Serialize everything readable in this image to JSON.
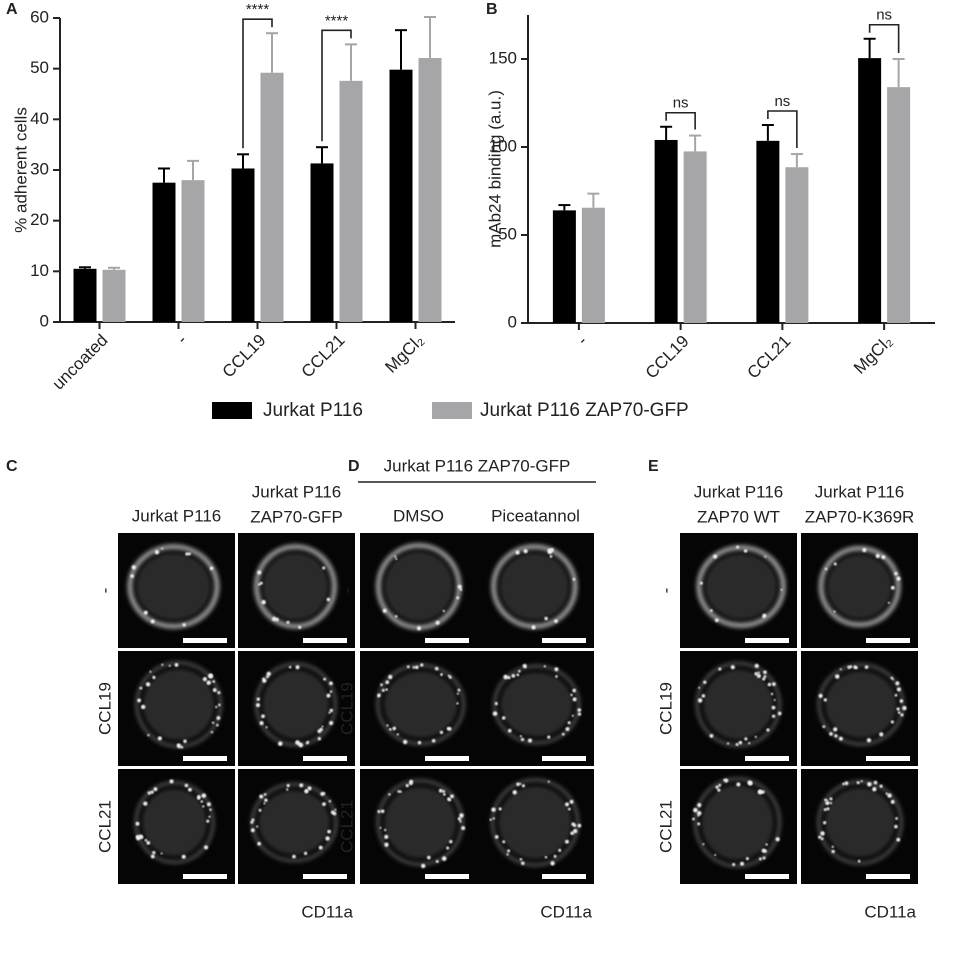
{
  "chart_data": [
    {
      "type": "bar",
      "label": "A",
      "ylabel": "% adherent cells",
      "categories": [
        "uncoated",
        "-",
        "CCL19",
        "CCL21",
        "MgCl₂"
      ],
      "series": [
        {
          "name": "Jurkat P116",
          "color": "#000000",
          "values": [
            10.5,
            27.5,
            30.3,
            31.3,
            49.8
          ],
          "errors": [
            0.3,
            2.8,
            2.8,
            3.2,
            7.8
          ]
        },
        {
          "name": "Jurkat P116 ZAP70-GFP",
          "color": "#a6a6a8",
          "values": [
            10.3,
            28.0,
            49.2,
            47.6,
            52.1
          ],
          "errors": [
            0.4,
            3.8,
            7.8,
            7.2,
            8.1
          ]
        }
      ],
      "annotations": [
        null,
        null,
        "****",
        "****",
        null
      ],
      "ylim": [
        0,
        60
      ],
      "yticks": [
        0,
        10,
        20,
        30,
        40,
        50,
        60
      ],
      "legend": "bottom"
    },
    {
      "type": "bar",
      "label": "B",
      "ylabel": "mAb24 binding (a.u.)",
      "categories": [
        "-",
        "CCL19",
        "CCL21",
        "MgCl₂"
      ],
      "series": [
        {
          "color": "#000000",
          "values": [
            64,
            104,
            103.5,
            150.5
          ],
          "errors": [
            3,
            7.5,
            9,
            11
          ]
        },
        {
          "color": "#a6a6a8",
          "values": [
            65.5,
            97.5,
            88.5,
            134
          ],
          "errors": [
            8,
            9,
            7.5,
            16
          ]
        }
      ],
      "annotations": [
        null,
        "ns",
        "ns",
        "ns"
      ],
      "ylim": [
        0,
        175
      ],
      "yticks": [
        0,
        50,
        100,
        150
      ]
    }
  ],
  "image_panels": [
    {
      "label": "C",
      "columns": [
        [
          "Jurkat P116"
        ],
        [
          "Jurkat P116",
          "ZAP70-GFP"
        ]
      ],
      "rows": [
        "-",
        "CCL19",
        "CCL21"
      ],
      "channel": "CD11a"
    },
    {
      "label": "D",
      "group": "Jurkat P116 ZAP70-GFP",
      "columns": [
        [
          "DMSO"
        ],
        [
          "Piceatannol"
        ]
      ],
      "rows": [
        "-",
        "CCL19",
        "CCL21"
      ],
      "channel": "CD11a"
    },
    {
      "label": "E",
      "columns": [
        [
          "Jurkat P116",
          "ZAP70 WT"
        ],
        [
          "Jurkat P116",
          "ZAP70-K369R"
        ]
      ],
      "rows": [
        "-",
        "CCL19",
        "CCL21"
      ],
      "channel": "CD11a"
    }
  ]
}
